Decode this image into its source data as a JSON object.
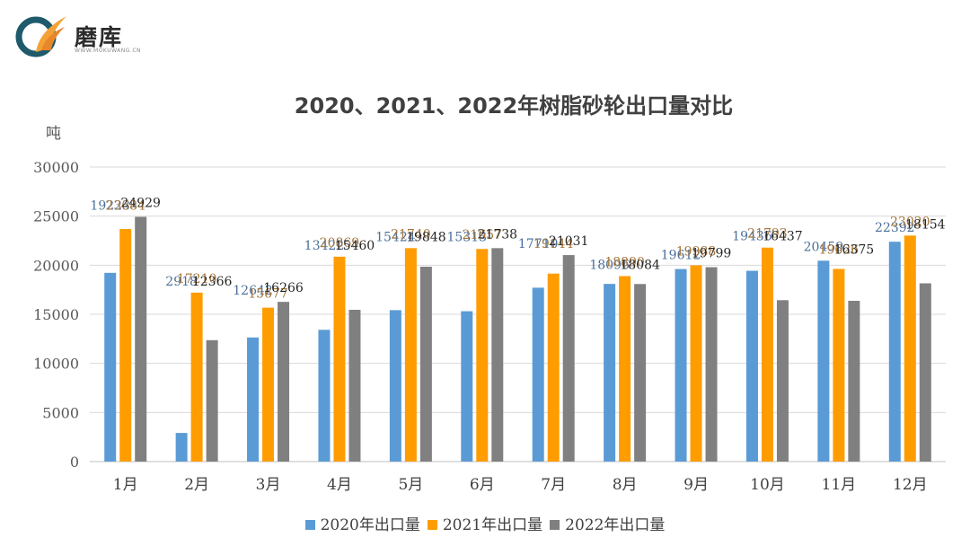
{
  "brand": {
    "name": "磨库",
    "subtitle": "WWW.MOKUWANG.CN",
    "colors": {
      "ring": "#1e5a6b",
      "flame": "#f4a236"
    }
  },
  "chart_data": {
    "type": "bar",
    "title": "2020、2021、2022年树脂砂轮出口量对比",
    "ylabel": "吨",
    "xlabel": "",
    "ylim": [
      0,
      30000
    ],
    "yticks": [
      0,
      5000,
      10000,
      15000,
      20000,
      25000,
      30000
    ],
    "grid": true,
    "legend_position": "bottom",
    "categories": [
      "1月",
      "2月",
      "3月",
      "4月",
      "5月",
      "6月",
      "7月",
      "8月",
      "9月",
      "10月",
      "11月",
      "12月"
    ],
    "series": [
      {
        "name": "2020年出口量",
        "color": "#5b9bd5",
        "label_color": "#4a6f9b",
        "values": [
          19223,
          2918,
          12642,
          13422,
          15424,
          15313,
          17710,
          18096,
          19612,
          19436,
          20459,
          22392
        ]
      },
      {
        "name": "2021年出口量",
        "color": "#ff9c00",
        "label_color": "#a6753a",
        "values": [
          23684,
          17210,
          15677,
          20869,
          21740,
          21657,
          19144,
          18890,
          19988,
          21793,
          19626,
          23020
        ]
      },
      {
        "name": "2022年出口量",
        "color": "#808080",
        "label_color": "#262626",
        "values": [
          24929,
          12366,
          16266,
          15460,
          19848,
          21738,
          21031,
          18084,
          19799,
          16437,
          16375,
          18154
        ]
      }
    ]
  }
}
